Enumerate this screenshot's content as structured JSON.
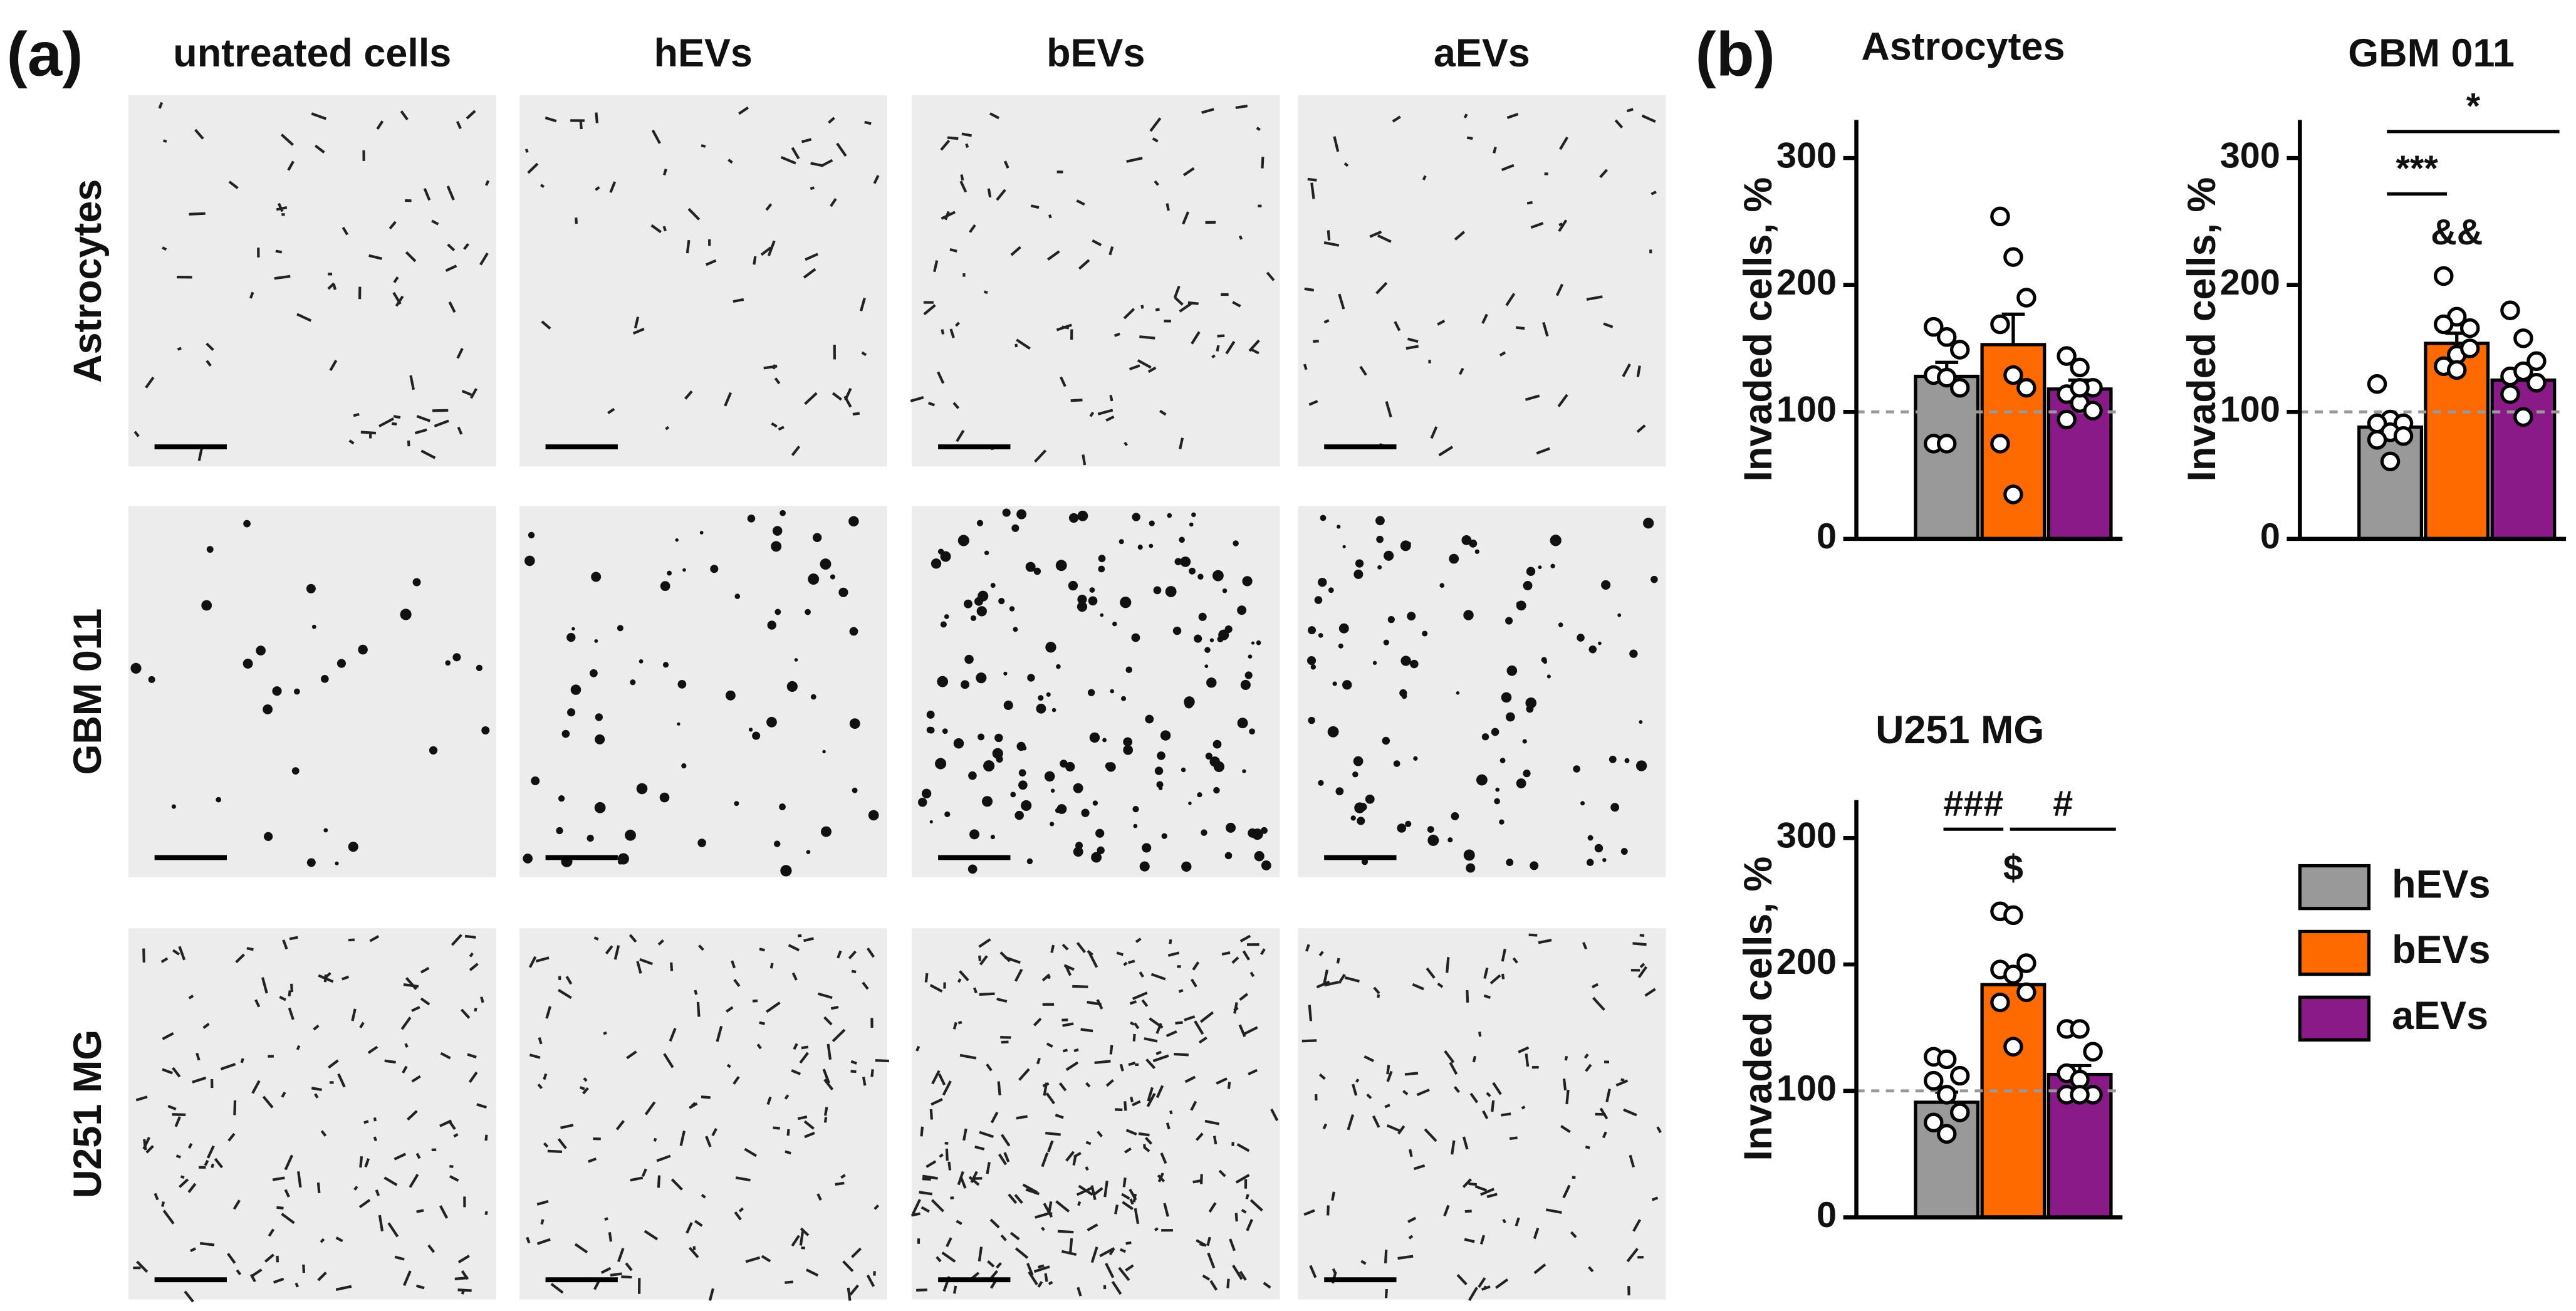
{
  "panel_a": {
    "label": "(a)",
    "columns": [
      "untreated cells",
      "hEVs",
      "bEVs",
      "aEVs"
    ],
    "rows": [
      "Astrocytes",
      "GBM 011",
      "U251 MG"
    ]
  },
  "panel_b": {
    "label": "(b)"
  },
  "chart_data": [
    {
      "type": "bar",
      "title": "Astrocytes",
      "y_label": "Invaded cells, %",
      "ylim": [
        0,
        330
      ],
      "yticks": [
        0,
        100,
        200,
        300
      ],
      "reference_line": 100,
      "series": [
        {
          "name": "hEVs",
          "color": "#999999",
          "values": [
            128
          ],
          "errors": [
            11
          ],
          "points": [
            167,
            159,
            149,
            129,
            127,
            119,
            75,
            75
          ]
        },
        {
          "name": "bEVs",
          "color": "#ff6a00",
          "values": [
            153
          ],
          "errors": [
            24
          ],
          "points": [
            254,
            222,
            190,
            169,
            129,
            119,
            75,
            35
          ]
        },
        {
          "name": "aEVs",
          "color": "#8b1a89",
          "values": [
            118
          ],
          "errors": [
            7
          ],
          "points": [
            144,
            135,
            119,
            114,
            107,
            101,
            94,
            119
          ]
        }
      ],
      "annotations": []
    },
    {
      "type": "bar",
      "title": "GBM 011",
      "y_label": "Invaded cells, %",
      "ylim": [
        0,
        330
      ],
      "yticks": [
        0,
        100,
        200,
        300
      ],
      "reference_line": 100,
      "series": [
        {
          "name": "hEVs",
          "color": "#999999",
          "values": [
            88
          ],
          "errors": [
            6
          ],
          "points": [
            122,
            94,
            91,
            91,
            84,
            81,
            78,
            61
          ]
        },
        {
          "name": "bEVs",
          "color": "#ff6a00",
          "values": [
            154
          ],
          "errors": [
            8
          ],
          "points": [
            207,
            175,
            166,
            169,
            145,
            150,
            136,
            133
          ]
        },
        {
          "name": "aEVs",
          "color": "#8b1a89",
          "values": [
            125
          ],
          "errors": [
            9
          ],
          "points": [
            180,
            158,
            140,
            128,
            132,
            123,
            114,
            96
          ]
        }
      ],
      "annotations": [
        {
          "text": "&&",
          "from": 1,
          "to": 1
        },
        {
          "text": "***",
          "from": 0,
          "to": 1
        },
        {
          "text": "*",
          "from": 0,
          "to": 2
        }
      ]
    },
    {
      "type": "bar",
      "title": "U251 MG",
      "y_label": "Invaded cells, %",
      "ylim": [
        0,
        330
      ],
      "yticks": [
        0,
        100,
        200,
        300
      ],
      "reference_line": 100,
      "series": [
        {
          "name": "hEVs",
          "color": "#999999",
          "values": [
            91
          ],
          "errors": [
            8
          ],
          "points": [
            127,
            125,
            112,
            108,
            97,
            83,
            75,
            66
          ]
        },
        {
          "name": "bEVs",
          "color": "#ff6a00",
          "values": [
            184
          ],
          "errors": [
            13
          ],
          "points": [
            242,
            239,
            201,
            196,
            192,
            178,
            170,
            135
          ]
        },
        {
          "name": "aEVs",
          "color": "#8b1a89",
          "values": [
            113
          ],
          "errors": [
            7
          ],
          "points": [
            149,
            149,
            131,
            114,
            109,
            97,
            97,
            97
          ]
        }
      ],
      "annotations": [
        {
          "text": "$",
          "from": 1,
          "to": 1
        },
        {
          "text": "###",
          "from": 0,
          "to": 1
        },
        {
          "text": "#",
          "from": 1,
          "to": 2
        }
      ]
    }
  ]
}
